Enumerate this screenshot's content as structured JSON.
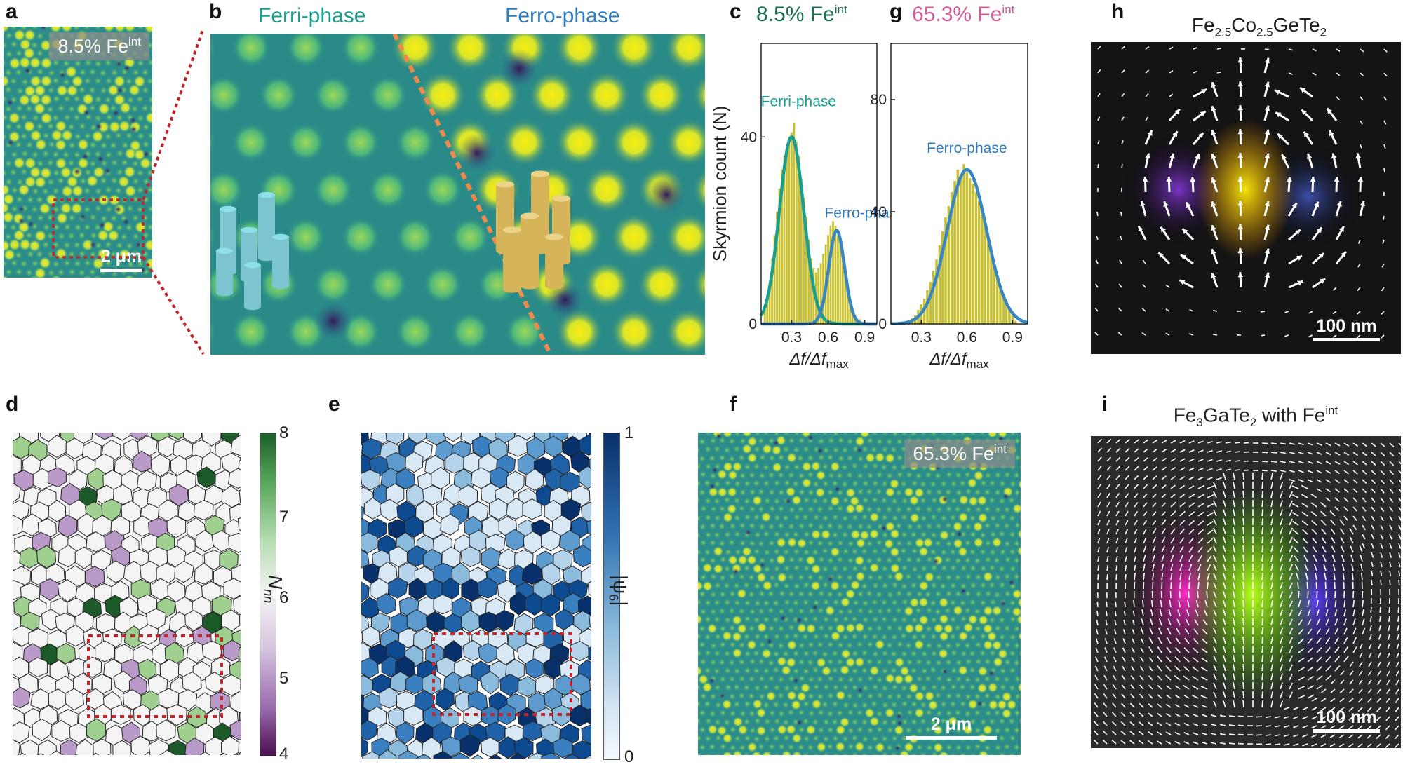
{
  "panels": {
    "a": {
      "label": "a",
      "tag": "8.5% Fe",
      "tag_sup": "int",
      "scale": "2 μm"
    },
    "b": {
      "label": "b",
      "ferri": "Ferri-phase",
      "ferro": "Ferro-phase"
    },
    "c": {
      "label": "c",
      "title": "8.5% Fe",
      "title_sup": "int"
    },
    "g": {
      "label": "g",
      "title": "65.3% Fe",
      "title_sup": "int"
    },
    "h": {
      "label": "h",
      "title_main": "Fe",
      "title_s1": "2.5",
      "title_mid": "Co",
      "title_s2": "2.5",
      "title_end": "GeTe",
      "title_s3": "2",
      "scale": "100 nm"
    },
    "d": {
      "label": "d",
      "cb_label": "N",
      "cb_sub": "nn",
      "cb_ticks": [
        "8",
        "7",
        "6",
        "5",
        "4"
      ]
    },
    "e": {
      "label": "e",
      "cb_label": "|ψ",
      "cb_sub": "6",
      "cb_end": "|",
      "cb_ticks": [
        "1",
        "0"
      ]
    },
    "f": {
      "label": "f",
      "tag": "65.3% Fe",
      "tag_sup": "int",
      "scale": "2 μm"
    },
    "i": {
      "label": "i",
      "title_a": "Fe",
      "title_s1": "3",
      "title_b": "GaTe",
      "title_s2": "2",
      "title_c": " with Fe",
      "title_sup": "int",
      "scale": "100 nm"
    }
  },
  "colors": {
    "ferri": "#1a9e8f",
    "ferro": "#2f7bbf",
    "g_title": "#d25c9a",
    "c_title": "#1b6e50",
    "hist": "#c8c030",
    "fit": "#3a86c0",
    "red_box": "#c0262c"
  },
  "chart_data": [
    {
      "type": "bar",
      "panel": "c",
      "title": "8.5% Fe^int",
      "ylabel": "Skyrmion count (N)",
      "xlabel": "Δf/Δf_max",
      "xticks": [
        0.3,
        0.6,
        0.9
      ],
      "yticks": [
        0,
        40
      ],
      "xlim": [
        0.05,
        1.0
      ],
      "ylim": [
        0,
        60
      ],
      "series": [
        {
          "name": "Ferri-phase",
          "fit_center": 0.3,
          "fit_amp": 40,
          "fit_sigma": 0.1
        },
        {
          "name": "Ferro-phase",
          "fit_center": 0.67,
          "fit_amp": 20,
          "fit_sigma": 0.065
        }
      ],
      "bins_x": [
        0.08,
        0.1,
        0.12,
        0.14,
        0.16,
        0.18,
        0.2,
        0.22,
        0.24,
        0.26,
        0.28,
        0.3,
        0.32,
        0.34,
        0.36,
        0.38,
        0.4,
        0.42,
        0.44,
        0.46,
        0.48,
        0.5,
        0.52,
        0.54,
        0.56,
        0.58,
        0.6,
        0.62,
        0.64,
        0.66,
        0.68,
        0.7,
        0.72,
        0.74,
        0.76,
        0.78,
        0.8,
        0.82,
        0.84,
        0.86,
        0.88,
        0.9,
        0.92,
        0.94
      ],
      "bins_y": [
        3,
        5,
        9,
        14,
        19,
        24,
        29,
        33,
        36,
        38,
        40,
        41,
        43,
        39,
        36,
        31,
        27,
        23,
        18,
        14,
        12,
        11,
        12,
        13,
        15,
        17,
        19,
        21,
        22,
        21,
        19,
        17,
        14,
        11,
        8,
        5,
        3,
        2,
        1,
        1,
        0,
        0,
        0,
        0
      ]
    },
    {
      "type": "bar",
      "panel": "g",
      "title": "65.3% Fe^int",
      "xlabel": "Δf/Δf_max",
      "xticks": [
        0.3,
        0.6,
        0.9
      ],
      "yticks": [
        0,
        40,
        80
      ],
      "xlim": [
        0.1,
        1.0
      ],
      "ylim": [
        0,
        100
      ],
      "series": [
        {
          "name": "Ferro-phase",
          "fit_center": 0.6,
          "fit_amp": 55,
          "fit_sigma": 0.13
        }
      ],
      "bins_x": [
        0.2,
        0.22,
        0.24,
        0.26,
        0.28,
        0.3,
        0.32,
        0.34,
        0.36,
        0.38,
        0.4,
        0.42,
        0.44,
        0.46,
        0.48,
        0.5,
        0.52,
        0.54,
        0.56,
        0.58,
        0.6,
        0.62,
        0.64,
        0.66,
        0.68,
        0.7,
        0.72,
        0.74,
        0.76,
        0.78,
        0.8,
        0.82,
        0.84,
        0.86,
        0.88,
        0.9,
        0.92
      ],
      "bins_y": [
        0,
        1,
        2,
        3,
        5,
        7,
        9,
        12,
        15,
        19,
        23,
        28,
        33,
        38,
        42,
        47,
        51,
        55,
        53,
        57,
        54,
        52,
        50,
        47,
        44,
        39,
        35,
        30,
        25,
        21,
        17,
        13,
        10,
        7,
        5,
        3,
        1
      ]
    }
  ]
}
